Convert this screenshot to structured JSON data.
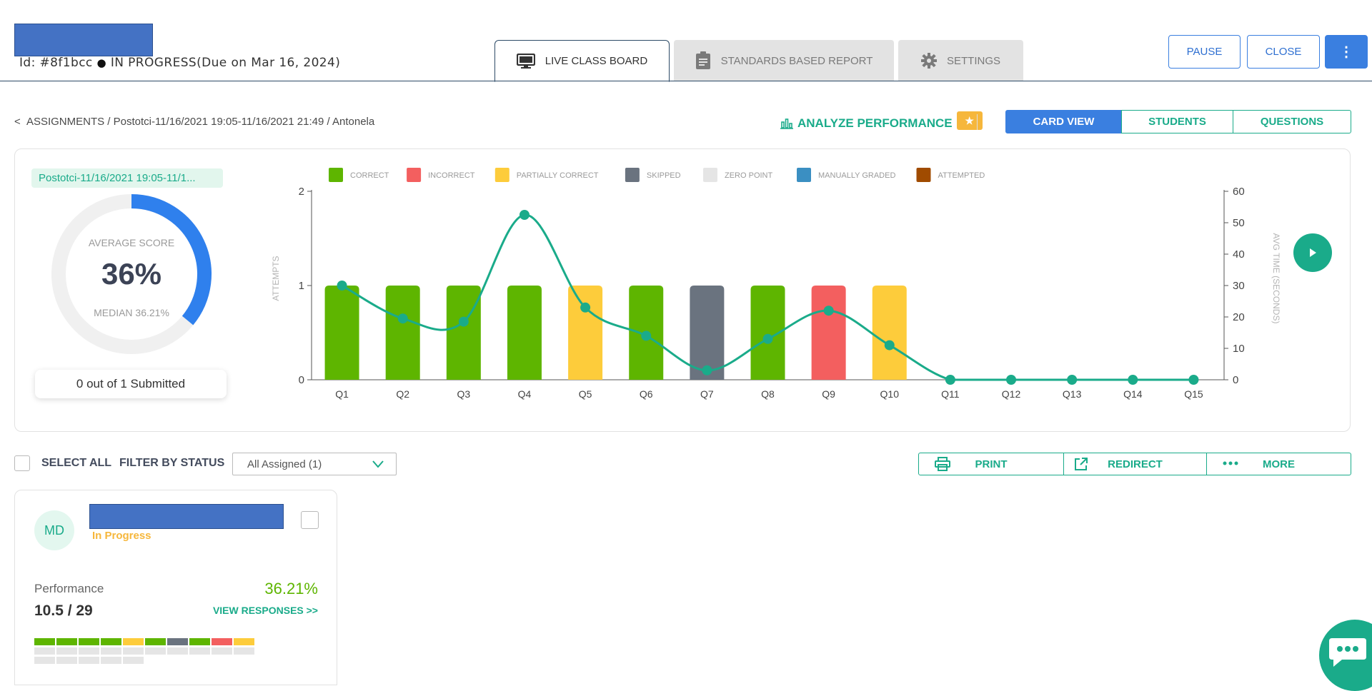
{
  "header": {
    "assignment_id": "Id: #8f1bcc",
    "status_dot": "●",
    "status_text": "IN PROGRESS(Due on Mar 16, 2024)",
    "tabs": [
      {
        "label": "LIVE CLASS BOARD",
        "icon": "monitor-icon",
        "active": true
      },
      {
        "label": "STANDARDS BASED REPORT",
        "icon": "clipboard-icon",
        "active": false
      },
      {
        "label": "SETTINGS",
        "icon": "gear-icon",
        "active": false
      }
    ],
    "buttons": {
      "pause": "PAUSE",
      "close": "CLOSE",
      "more": "⋮"
    }
  },
  "breadcrumb": {
    "back": "<",
    "assignments": "ASSIGNMENTS",
    "sep": "/",
    "session": "Postotci-11/16/2021 19:05-11/16/2021 21:49",
    "student": "Antonela"
  },
  "toolbar": {
    "analyze_label": "ANALYZE PERFORMANCE",
    "star": "★",
    "views": [
      "CARD VIEW",
      "STUDENTS",
      "QUESTIONS"
    ],
    "active_view": "CARD VIEW"
  },
  "summary": {
    "session_tag": "Postotci-11/16/2021 19:05-11/1...",
    "average_score_label": "AVERAGE SCORE",
    "average_score": "36%",
    "average_fraction": 0.36,
    "median": "MEDIAN 36.21%",
    "submitted": "0 out of 1 Submitted"
  },
  "chart_data": {
    "type": "bar",
    "legend": [
      {
        "name": "CORRECT",
        "color": "#5eb500"
      },
      {
        "name": "INCORRECT",
        "color": "#f35f5f"
      },
      {
        "name": "PARTIALLY CORRECT",
        "color": "#fdcc3b"
      },
      {
        "name": "SKIPPED",
        "color": "#6a737f"
      },
      {
        "name": "ZERO POINT",
        "color": "#e5e5e5"
      },
      {
        "name": "MANUALLY GRADED",
        "color": "#3b8fc2"
      },
      {
        "name": "ATTEMPTED",
        "color": "#a04b00"
      }
    ],
    "categories": [
      "Q1",
      "Q2",
      "Q3",
      "Q4",
      "Q5",
      "Q6",
      "Q7",
      "Q8",
      "Q9",
      "Q10",
      "Q11",
      "Q12",
      "Q13",
      "Q14",
      "Q15"
    ],
    "attempts": [
      1,
      1,
      1,
      1,
      1,
      1,
      1,
      1,
      1,
      1,
      0,
      0,
      0,
      0,
      0
    ],
    "status": [
      "CORRECT",
      "CORRECT",
      "CORRECT",
      "CORRECT",
      "PARTIALLY CORRECT",
      "CORRECT",
      "SKIPPED",
      "CORRECT",
      "INCORRECT",
      "PARTIALLY CORRECT",
      null,
      null,
      null,
      null,
      null
    ],
    "avg_time_seconds": [
      30,
      19.5,
      18.5,
      52.5,
      23,
      14,
      3,
      13,
      22,
      11,
      0,
      0,
      0,
      0,
      0
    ],
    "ylabel": "ATTEMPTS",
    "y2label": "AVG TIME (SECONDS)",
    "ylim": [
      0,
      2
    ],
    "y2lim": [
      0,
      60
    ],
    "yticks": [
      "0",
      "1",
      "2"
    ],
    "y2ticks": [
      "0",
      "10",
      "20",
      "30",
      "40",
      "50",
      "60"
    ],
    "line_color": "#1aab8a"
  },
  "filters": {
    "select_all": "SELECT ALL",
    "filter_by_status": "FILTER BY STATUS",
    "status_value": "All Assigned (1)",
    "print": "PRINT",
    "redirect": "REDIRECT",
    "more": "MORE"
  },
  "student": {
    "initials": "MD",
    "status": "In Progress",
    "performance_label": "Performance",
    "performance_pct": "36.21%",
    "score": "10.5 / 29",
    "view_responses": "VIEW RESPONSES >>",
    "bars_row1": [
      "#5eb500",
      "#5eb500",
      "#5eb500",
      "#5eb500",
      "#fdcc3b",
      "#5eb500",
      "#6a737f",
      "#5eb500",
      "#f35f5f",
      "#fdcc3b"
    ],
    "bars_row2_count": 10,
    "bars_row3_count": 5
  }
}
